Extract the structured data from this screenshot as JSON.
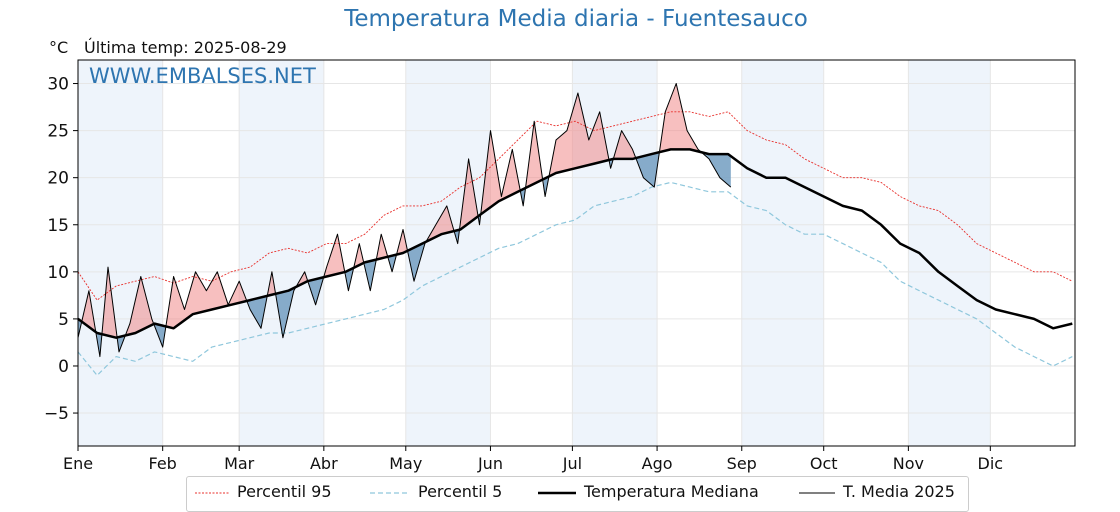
{
  "header": {
    "title": "Temperatura Media diaria - Fuentesauco",
    "unit": "°C",
    "last_temp": "Última temp: 2025-08-29",
    "watermark": "WWW.EMBALSES.NET"
  },
  "colors": {
    "p95": "#e8302c",
    "p5": "#8fc7dc",
    "median": "#000000",
    "t2025": "#000000",
    "above_fill": "#f08a8a",
    "below_fill": "#7aa3c4",
    "month_band": "#eef4fb"
  },
  "chart_data": {
    "type": "line",
    "title": "Temperatura Media diaria - Fuentesauco",
    "ylabel": "°C",
    "xlabel": "",
    "ylim": [
      -8.5,
      32.5
    ],
    "yticks": [
      30,
      25,
      20,
      15,
      10,
      5,
      0,
      -5
    ],
    "ytick_labels": [
      "30",
      "25",
      "20",
      "15",
      "10",
      "5",
      "0",
      "−5"
    ],
    "months": [
      "Ene",
      "Feb",
      "Mar",
      "Abr",
      "May",
      "Jun",
      "Jul",
      "Ago",
      "Sep",
      "Oct",
      "Nov",
      "Dic"
    ],
    "month_start_days": [
      1,
      32,
      60,
      91,
      121,
      152,
      182,
      213,
      244,
      274,
      305,
      335
    ],
    "grid": true,
    "legend_position": "bottom",
    "series": [
      {
        "name": "Percentil 95",
        "style": "dotted",
        "x": [
          1,
          8,
          15,
          22,
          29,
          36,
          43,
          50,
          57,
          64,
          71,
          78,
          85,
          92,
          99,
          106,
          113,
          120,
          127,
          134,
          141,
          148,
          155,
          162,
          169,
          176,
          183,
          190,
          197,
          204,
          211,
          218,
          225,
          232,
          239,
          246,
          253,
          260,
          267,
          274,
          281,
          288,
          295,
          302,
          309,
          316,
          323,
          330,
          337,
          344,
          351,
          358,
          365
        ],
        "values": [
          10,
          7,
          8.5,
          9,
          9.5,
          8.8,
          9.5,
          9,
          10,
          10.5,
          12,
          12.5,
          12,
          13,
          13,
          14,
          16,
          17,
          17,
          17.5,
          19,
          20,
          22,
          24,
          26,
          25.5,
          26,
          25,
          25.5,
          26,
          26.5,
          27,
          27,
          26.5,
          27,
          25,
          24,
          23.5,
          22,
          21,
          20,
          20,
          19.5,
          18,
          17,
          16.5,
          15,
          13,
          12,
          11,
          10,
          10,
          9
        ]
      },
      {
        "name": "Percentil 5",
        "style": "dashed",
        "x": [
          1,
          8,
          15,
          22,
          29,
          36,
          43,
          50,
          57,
          64,
          71,
          78,
          85,
          92,
          99,
          106,
          113,
          120,
          127,
          134,
          141,
          148,
          155,
          162,
          169,
          176,
          183,
          190,
          197,
          204,
          211,
          218,
          225,
          232,
          239,
          246,
          253,
          260,
          267,
          274,
          281,
          288,
          295,
          302,
          309,
          316,
          323,
          330,
          337,
          344,
          351,
          358,
          365
        ],
        "values": [
          1.5,
          -1,
          1,
          0.5,
          1.5,
          1,
          0.5,
          2,
          2.5,
          3,
          3.5,
          3.5,
          4,
          4.5,
          5,
          5.5,
          6,
          7,
          8.5,
          9.5,
          10.5,
          11.5,
          12.5,
          13,
          14,
          15,
          15.5,
          17,
          17.5,
          18,
          19,
          19.5,
          19,
          18.5,
          18.5,
          17,
          16.5,
          15,
          14,
          14,
          13,
          12,
          11,
          9,
          8,
          7,
          6,
          5,
          3.5,
          2,
          1,
          0,
          1
        ]
      },
      {
        "name": "Temperatura Mediana",
        "style": "solid-thick",
        "x": [
          1,
          8,
          15,
          22,
          29,
          36,
          43,
          50,
          57,
          64,
          71,
          78,
          85,
          92,
          99,
          106,
          113,
          120,
          127,
          134,
          141,
          148,
          155,
          162,
          169,
          176,
          183,
          190,
          197,
          204,
          211,
          218,
          225,
          232,
          239,
          246,
          253,
          260,
          267,
          274,
          281,
          288,
          295,
          302,
          309,
          316,
          323,
          330,
          337,
          344,
          351,
          358,
          365
        ],
        "values": [
          5,
          3.5,
          3,
          3.5,
          4.5,
          4,
          5.5,
          6,
          6.5,
          7,
          7.5,
          8,
          9,
          9.5,
          10,
          11,
          11.5,
          12,
          13,
          14,
          14.5,
          16,
          17.5,
          18.5,
          19.5,
          20.5,
          21,
          21.5,
          22,
          22,
          22.5,
          23,
          23,
          22.5,
          22.5,
          21,
          20,
          20,
          19,
          18,
          17,
          16.5,
          15,
          13,
          12,
          10,
          8.5,
          7,
          6,
          5.5,
          5,
          4,
          4.5
        ]
      },
      {
        "name": "T. Media 2025",
        "style": "solid-thin",
        "x": [
          1,
          5,
          9,
          12,
          16,
          20,
          24,
          28,
          32,
          36,
          40,
          44,
          48,
          52,
          56,
          60,
          64,
          68,
          72,
          76,
          80,
          84,
          88,
          92,
          96,
          100,
          104,
          108,
          112,
          116,
          120,
          124,
          128,
          132,
          136,
          140,
          144,
          148,
          152,
          156,
          160,
          164,
          168,
          172,
          176,
          180,
          184,
          188,
          192,
          196,
          200,
          204,
          208,
          212,
          216,
          220,
          224,
          228,
          232,
          236,
          240
        ],
        "values": [
          3,
          8,
          1,
          10.5,
          1.5,
          4.5,
          9.5,
          5,
          2,
          9.5,
          6,
          10,
          8,
          10,
          6.5,
          9,
          6,
          4,
          10,
          3,
          8,
          10,
          6.5,
          10.5,
          14,
          8,
          13,
          8,
          14,
          10,
          14.5,
          9,
          13,
          15,
          17,
          13,
          22,
          15,
          25,
          18,
          23,
          17,
          26,
          18,
          24,
          25,
          29,
          24,
          27,
          21,
          25,
          23,
          20,
          19,
          27,
          30,
          25,
          23,
          22,
          20,
          19
        ]
      }
    ]
  },
  "legend": {
    "p95": "Percentil 95",
    "p5": "Percentil 5",
    "median": "Temperatura Mediana",
    "t2025": "T. Media 2025"
  }
}
